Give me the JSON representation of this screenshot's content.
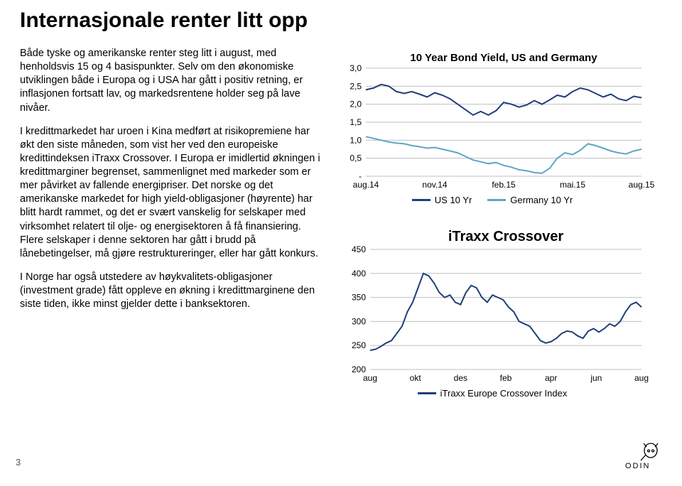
{
  "title": "Internasjonale renter litt opp",
  "paragraphs": {
    "p1": "Både tyske og amerikanske renter steg litt i august, med henholdsvis 15 og 4 basispunkter. Selv om den økonomiske utviklingen både i Europa og i USA har gått i positiv retning, er inflasjonen fortsatt lav, og markedsrentene holder seg på lave nivåer.",
    "p2": "I kredittmarkedet har uroen i Kina medført at risikopremiene har økt den siste måneden, som vist her ved den europeiske kredittindeksen iTraxx Crossover. I Europa er imidlertid økningen i kredittmarginer begrenset, sammenlignet med markeder som er mer påvirket av fallende energipriser. Det norske og det amerikanske markedet for high yield-obligasjoner (høyrente) har blitt hardt rammet, og det er svært vanskelig for selskaper med virksomhet relatert til olje- og energisektoren å få finansiering. Flere selskaper i denne sektoren har gått i brudd på lånebetingelser, må gjøre restruktureringer, eller har gått konkurs.",
    "p3": "I Norge har også utstedere av høykvalitets-obligasjoner (investment grade) fått oppleve en økning i kredittmarginene den siste tiden, ikke minst gjelder dette i banksektoren."
  },
  "chart1": {
    "title": "10 Year Bond Yield, US and Germany",
    "type": "line",
    "xlabels": [
      "aug.14",
      "nov.14",
      "feb.15",
      "mai.15",
      "aug.15"
    ],
    "yticks": [
      "-",
      "0,5",
      "1,0",
      "1,5",
      "2,0",
      "2,5",
      "3,0"
    ],
    "ymin": 0,
    "ymax": 3.0,
    "ytick_step": 0.5,
    "grid_color": "#bfbfbf",
    "background_color": "#ffffff",
    "axis_fontsize": 12,
    "title_fontsize": 15,
    "line_width": 2,
    "series": [
      {
        "name": "US 10 Yr",
        "color": "#1f3e7a",
        "data": [
          2.4,
          2.45,
          2.55,
          2.5,
          2.35,
          2.3,
          2.35,
          2.28,
          2.2,
          2.32,
          2.25,
          2.15,
          2.0,
          1.85,
          1.7,
          1.8,
          1.7,
          1.82,
          2.05,
          2.0,
          1.92,
          1.98,
          2.1,
          2.0,
          2.12,
          2.25,
          2.2,
          2.35,
          2.45,
          2.4,
          2.3,
          2.2,
          2.28,
          2.15,
          2.1,
          2.22,
          2.18
        ]
      },
      {
        "name": "Germany 10 Yr",
        "color": "#5fa6c2",
        "data": [
          1.1,
          1.05,
          1.0,
          0.95,
          0.92,
          0.9,
          0.85,
          0.82,
          0.78,
          0.8,
          0.75,
          0.7,
          0.65,
          0.55,
          0.45,
          0.4,
          0.35,
          0.38,
          0.3,
          0.25,
          0.18,
          0.15,
          0.1,
          0.08,
          0.22,
          0.5,
          0.65,
          0.6,
          0.72,
          0.9,
          0.85,
          0.78,
          0.7,
          0.65,
          0.62,
          0.7,
          0.75
        ]
      }
    ]
  },
  "chart2": {
    "title": "iTraxx Crossover",
    "type": "line",
    "xlabels": [
      "aug",
      "okt",
      "des",
      "feb",
      "apr",
      "jun",
      "aug"
    ],
    "yticks": [
      "200",
      "250",
      "300",
      "350",
      "400",
      "450"
    ],
    "ymin": 200,
    "ymax": 450,
    "ytick_step": 50,
    "grid_color": "#bfbfbf",
    "background_color": "#ffffff",
    "axis_fontsize": 12,
    "title_fontsize": 20,
    "line_width": 2,
    "series": [
      {
        "name": "iTraxx Europe Crossover Index",
        "color": "#1f3e7a",
        "data": [
          240,
          242,
          248,
          255,
          260,
          275,
          290,
          320,
          340,
          370,
          400,
          395,
          380,
          360,
          350,
          355,
          340,
          335,
          360,
          375,
          370,
          350,
          340,
          355,
          350,
          345,
          330,
          320,
          300,
          295,
          290,
          275,
          260,
          255,
          258,
          265,
          275,
          280,
          278,
          270,
          265,
          280,
          285,
          278,
          285,
          295,
          290,
          300,
          320,
          335,
          340,
          330
        ]
      }
    ]
  },
  "page_number": "3",
  "logo_text": "ODIN"
}
